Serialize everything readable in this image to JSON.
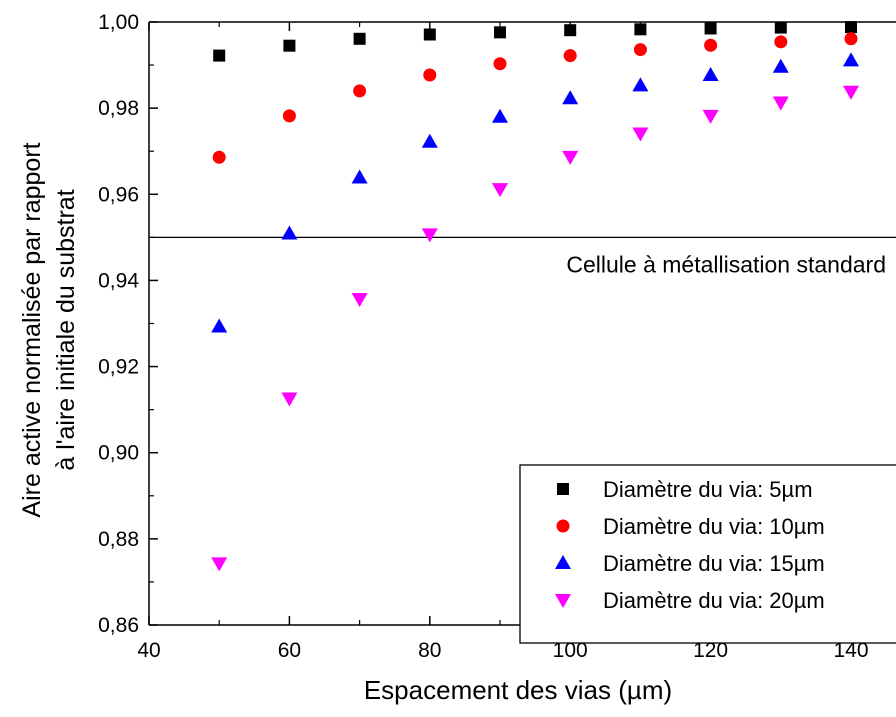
{
  "chart_data": {
    "type": "scatter",
    "title": "",
    "xlabel": "Espacement des vias (µm)",
    "ylabel": [
      "Aire active normalisée par rapport",
      "à l'aire initiale du substrat"
    ],
    "xlim": [
      40,
      150
    ],
    "ylim": [
      0.86,
      1.0
    ],
    "xticks": [
      40,
      60,
      80,
      100,
      120,
      140
    ],
    "xtick_labels": [
      "40",
      "60",
      "80",
      "100",
      "120",
      "140"
    ],
    "yticks": [
      0.86,
      0.88,
      0.9,
      0.92,
      0.94,
      0.96,
      0.98,
      1.0
    ],
    "ytick_labels": [
      "0,86",
      "0,88",
      "0,90",
      "0,92",
      "0,94",
      "0,96",
      "0,98",
      "1,00"
    ],
    "grid": false,
    "legend_position": "bottom-right",
    "reference_line": {
      "y": 0.95,
      "label": "Cellule à métallisation standard"
    },
    "series": [
      {
        "name": "Diamètre du via: 5µm",
        "marker": "square",
        "color": "#000000",
        "x": [
          50,
          60,
          70,
          80,
          90,
          100,
          110,
          120,
          130,
          140
        ],
        "y": [
          0.9922,
          0.9945,
          0.9961,
          0.9971,
          0.9976,
          0.9981,
          0.9983,
          0.9985,
          0.9987,
          0.9988
        ]
      },
      {
        "name": "Diamètre du via: 10µm",
        "marker": "circle",
        "color": "#ff0000",
        "x": [
          50,
          60,
          70,
          80,
          90,
          100,
          110,
          120,
          130,
          140
        ],
        "y": [
          0.9686,
          0.9782,
          0.984,
          0.9877,
          0.9903,
          0.9922,
          0.9936,
          0.9946,
          0.9954,
          0.9961
        ]
      },
      {
        "name": "Diamètre du via: 15µm",
        "marker": "triangle-up",
        "color": "#0000ff",
        "x": [
          50,
          60,
          70,
          80,
          90,
          100,
          110,
          120,
          130,
          140
        ],
        "y": [
          0.9293,
          0.9509,
          0.9639,
          0.9722,
          0.978,
          0.9823,
          0.9853,
          0.9877,
          0.9896,
          0.9911
        ]
      },
      {
        "name": "Diamètre du via: 20µm",
        "marker": "triangle-down",
        "color": "#ff00ff",
        "x": [
          50,
          60,
          70,
          80,
          90,
          100,
          110,
          120,
          130,
          140
        ],
        "y": [
          0.8743,
          0.9126,
          0.9357,
          0.9507,
          0.9612,
          0.9687,
          0.9741,
          0.9782,
          0.9813,
          0.9838
        ]
      }
    ]
  }
}
